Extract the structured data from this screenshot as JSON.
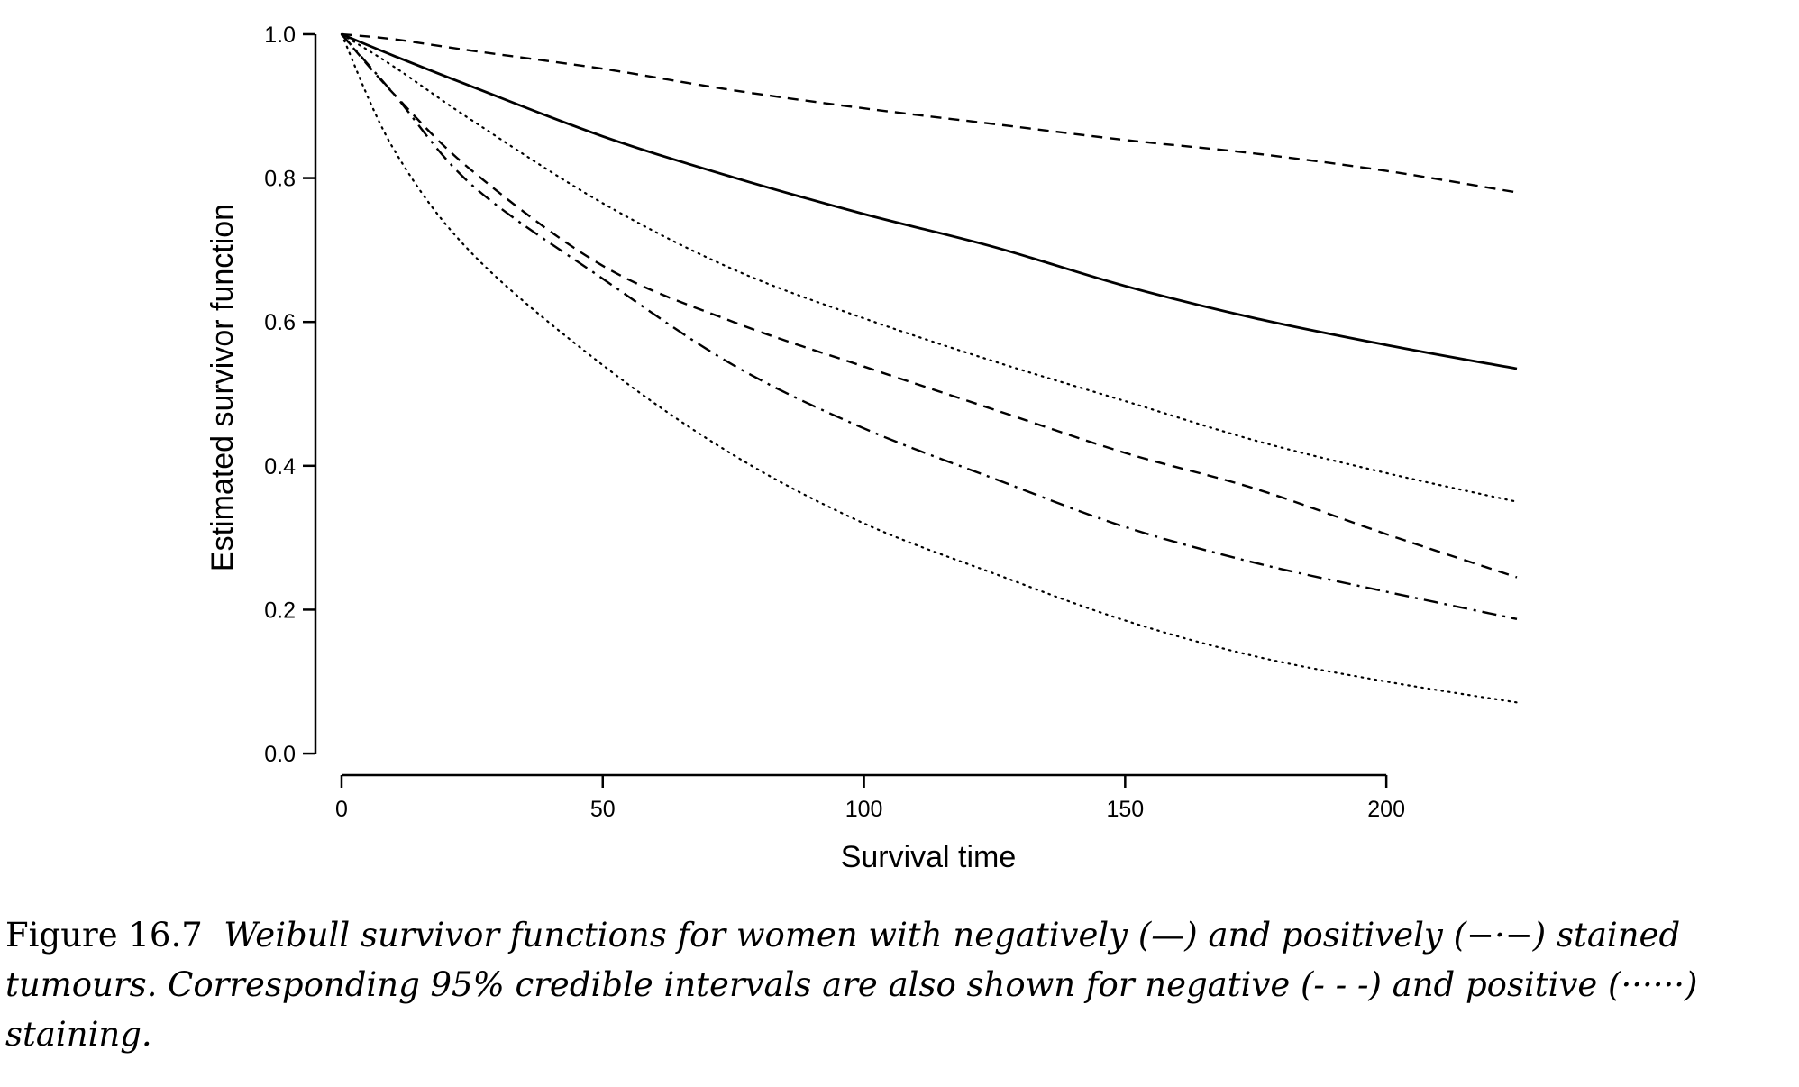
{
  "chart_data": {
    "type": "line",
    "xlabel": "Survival time",
    "ylabel": "Estimated survivor function",
    "xlim": [
      -5,
      230
    ],
    "ylim": [
      -0.03,
      1.02
    ],
    "xticks": [
      "0",
      "50",
      "100",
      "150",
      "200"
    ],
    "yticks": [
      "0.0",
      "0.2",
      "0.4",
      "0.6",
      "0.8",
      "1.0"
    ],
    "grid": false,
    "legend": "none",
    "x": [
      0,
      10,
      25,
      50,
      75,
      100,
      125,
      150,
      175,
      200,
      225
    ],
    "series": [
      {
        "style": "solid",
        "values": [
          1.0,
          0.97,
          0.927,
          0.858,
          0.801,
          0.75,
          0.704,
          0.65,
          0.605,
          0.568,
          0.535
        ]
      },
      {
        "style": "dashed",
        "values": [
          1.0,
          0.993,
          0.977,
          0.952,
          0.922,
          0.897,
          0.875,
          0.853,
          0.834,
          0.81,
          0.78
        ]
      },
      {
        "style": "dotted",
        "values": [
          1.0,
          0.955,
          0.88,
          0.765,
          0.673,
          0.605,
          0.545,
          0.49,
          0.435,
          0.39,
          0.35
        ]
      },
      {
        "style": "dashed",
        "values": [
          1.0,
          0.917,
          0.81,
          0.678,
          0.6,
          0.538,
          0.478,
          0.418,
          0.368,
          0.305,
          0.245
        ]
      },
      {
        "style": "dashdot",
        "values": [
          1.0,
          0.917,
          0.79,
          0.66,
          0.54,
          0.452,
          0.382,
          0.315,
          0.265,
          0.225,
          0.187
        ]
      },
      {
        "style": "dotted",
        "values": [
          1.0,
          0.84,
          0.695,
          0.54,
          0.415,
          0.32,
          0.25,
          0.185,
          0.135,
          0.1,
          0.071
        ]
      }
    ]
  },
  "caption": {
    "label": "Figure 16.7",
    "text": "Weibull survivor functions for women with negatively (—) and positively (−·−) stained tumours. Corresponding 95% credible intervals are also shown for negative (- - -) and positive (······) staining."
  }
}
